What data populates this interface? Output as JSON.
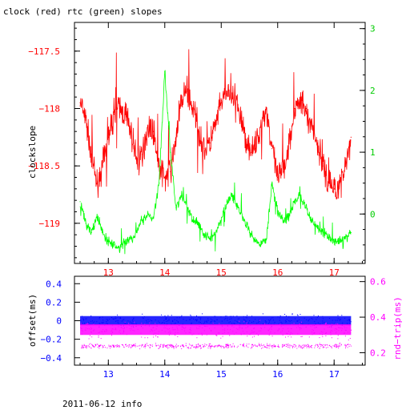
{
  "chart_data": [
    {
      "type": "line",
      "title": "clock (red) rtc (green) slopes",
      "ylabel": "clockslope",
      "ylabel_right": "",
      "xlim": [
        12.4,
        17.55
      ],
      "ylim": [
        -119.35,
        -117.25
      ],
      "ylim_right": [
        -0.8,
        3.1
      ],
      "x_ticks": [
        13,
        14,
        15,
        16,
        17
      ],
      "y_ticks": [
        -117.5,
        -118,
        -118.5,
        -119
      ],
      "y_tick_labels": [
        "−117.5",
        "−118",
        "−118.5",
        "−119"
      ],
      "y_ticks_right": [
        0,
        1,
        2,
        3
      ],
      "series": [
        {
          "name": "clock",
          "color": "#ff0000",
          "axis": "left",
          "x": [
            12.5,
            12.6,
            12.7,
            12.8,
            12.9,
            13.0,
            13.1,
            13.2,
            13.3,
            13.4,
            13.5,
            13.6,
            13.7,
            13.8,
            13.9,
            14.0,
            14.1,
            14.2,
            14.3,
            14.4,
            14.5,
            14.6,
            14.7,
            14.8,
            14.9,
            15.0,
            15.1,
            15.2,
            15.3,
            15.4,
            15.5,
            15.6,
            15.7,
            15.8,
            15.9,
            16.0,
            16.1,
            16.2,
            16.3,
            16.4,
            16.5,
            16.6,
            16.7,
            16.8,
            16.9,
            17.0,
            17.1,
            17.2,
            17.3
          ],
          "values": [
            -117.95,
            -118.1,
            -118.4,
            -118.65,
            -118.5,
            -118.25,
            -118.05,
            -118.0,
            -118.05,
            -118.2,
            -118.45,
            -118.4,
            -118.15,
            -118.2,
            -118.5,
            -118.6,
            -118.55,
            -118.25,
            -117.9,
            -117.85,
            -118.0,
            -118.2,
            -118.35,
            -118.3,
            -118.15,
            -117.95,
            -117.85,
            -117.9,
            -118.0,
            -118.2,
            -118.35,
            -118.35,
            -118.15,
            -118.0,
            -118.35,
            -118.6,
            -118.55,
            -118.3,
            -118.0,
            -117.95,
            -118.0,
            -118.15,
            -118.3,
            -118.5,
            -118.65,
            -118.7,
            -118.65,
            -118.5,
            -118.25
          ]
        },
        {
          "name": "rtc",
          "color": "#00ff00",
          "axis": "right",
          "x": [
            12.5,
            12.6,
            12.7,
            12.8,
            12.9,
            13.0,
            13.1,
            13.2,
            13.3,
            13.4,
            13.5,
            13.6,
            13.7,
            13.8,
            13.9,
            14.0,
            14.1,
            14.2,
            14.3,
            14.4,
            14.5,
            14.6,
            14.7,
            14.8,
            14.9,
            15.0,
            15.1,
            15.2,
            15.3,
            15.4,
            15.5,
            15.6,
            15.7,
            15.8,
            15.9,
            16.0,
            16.1,
            16.2,
            16.3,
            16.4,
            16.5,
            16.6,
            16.7,
            16.8,
            16.9,
            17.0,
            17.1,
            17.2,
            17.3
          ],
          "values": [
            0.2,
            -0.15,
            -0.3,
            -0.05,
            -0.3,
            -0.45,
            -0.5,
            -0.55,
            -0.45,
            -0.4,
            -0.3,
            -0.1,
            0.0,
            -0.05,
            0.5,
            2.3,
            1.0,
            0.1,
            0.3,
            0.1,
            -0.1,
            -0.15,
            -0.35,
            -0.4,
            -0.3,
            -0.1,
            0.2,
            0.3,
            0.1,
            -0.1,
            -0.3,
            -0.45,
            -0.5,
            -0.4,
            0.5,
            0.05,
            -0.1,
            -0.05,
            0.2,
            0.3,
            0.1,
            -0.1,
            -0.2,
            -0.3,
            -0.35,
            -0.45,
            -0.4,
            -0.4,
            -0.3
          ]
        }
      ]
    },
    {
      "type": "scatter",
      "xlabel": "",
      "ylabel": "offset(ms)",
      "ylabel_right": "rnd−trip(ms)",
      "xlim": [
        12.4,
        17.55
      ],
      "ylim": [
        -0.48,
        0.48
      ],
      "ylim_right": [
        0.13,
        0.63
      ],
      "x_ticks": [
        13,
        14,
        15,
        16,
        17
      ],
      "y_ticks": [
        0.4,
        0.2,
        0,
        -0.2,
        -0.4
      ],
      "y_tick_labels": [
        "0.4",
        "0.2",
        "0",
        "−0.2",
        "−0.4"
      ],
      "y_ticks_right": [
        0.6,
        0.4,
        0.2
      ],
      "series": [
        {
          "name": "offset",
          "color": "#0000ff",
          "axis": "left",
          "x_range": [
            12.5,
            17.3
          ],
          "center": 0.0,
          "spread": 0.05
        },
        {
          "name": "rnd-trip",
          "color": "#ff00ff",
          "axis": "right",
          "x_range": [
            12.5,
            17.3
          ],
          "center": 0.33,
          "spread": 0.03,
          "secondary_band": 0.24
        }
      ]
    }
  ],
  "footer": "2011-06-12 info"
}
